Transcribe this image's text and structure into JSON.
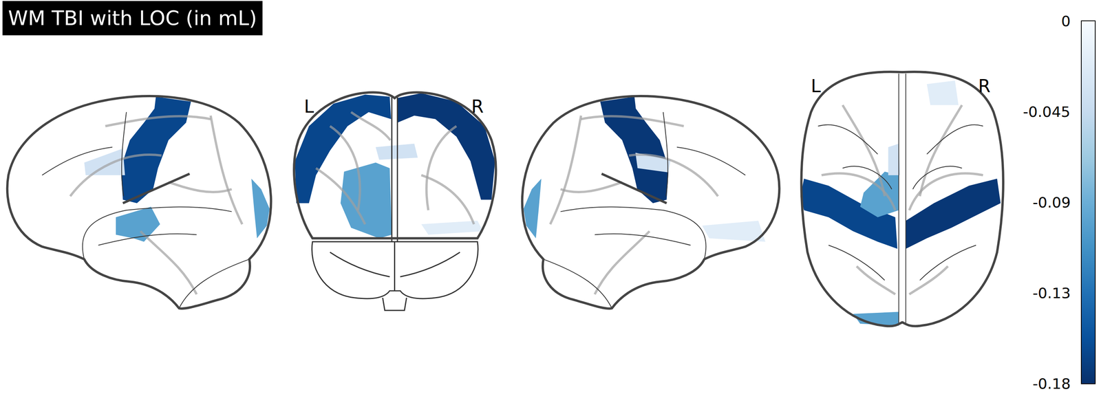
{
  "chart_data": {
    "type": "glass_brain",
    "title": "WM TBI with LOC (in mL)",
    "coronal_labels": [
      "L",
      "R"
    ],
    "axial_labels": [
      "L",
      "R"
    ],
    "values": [
      -0.165,
      -0.175,
      -0.1,
      -0.1,
      -0.035,
      -0.02
    ],
    "colorbar": {
      "range": [
        -0.18,
        0
      ],
      "ticks": [
        0,
        -0.045,
        -0.09,
        {
          "value": -0.135,
          "label": "-0.13"
        },
        -0.18
      ]
    }
  }
}
